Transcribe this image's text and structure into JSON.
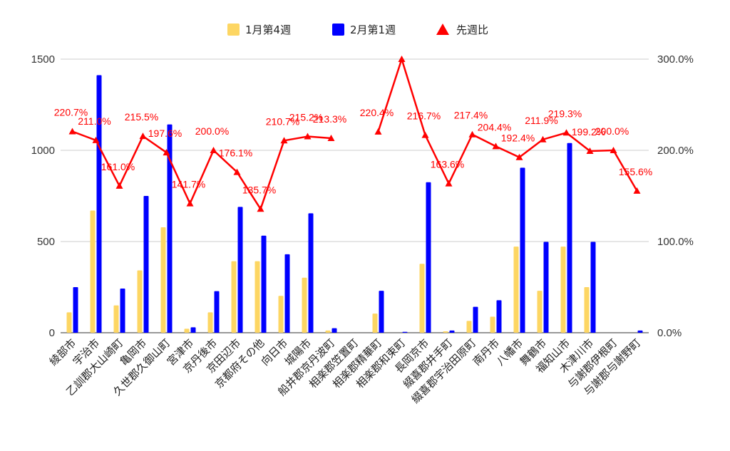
{
  "chart_data": {
    "type": "bar",
    "title": "",
    "xlabel": "",
    "ylabel": "",
    "ylim": [
      0,
      1500
    ],
    "y2lim": [
      0,
      300
    ],
    "yticks": [
      "0",
      "500",
      "1000",
      "1500"
    ],
    "y2ticks": [
      "0.0%",
      "100.0%",
      "200.0%",
      "300.0%"
    ],
    "legend_position": "top",
    "grid": true,
    "categories": [
      "綾部市",
      "宇治市",
      "乙訓郡大山崎町",
      "亀岡市",
      "久世郡久御山町",
      "宮津市",
      "京丹後市",
      "京田辺市",
      "京都府その他",
      "向日市",
      "城陽市",
      "船井郡京丹波町",
      "相楽郡笠置町",
      "相楽郡精華町",
      "相楽郡和束町",
      "長岡京市",
      "綴喜郡井手町",
      "綴喜郡宇治田原町",
      "南丹市",
      "八幡市",
      "舞鶴市",
      "福知山市",
      "木津川市",
      "与謝郡伊根町",
      "与謝郡与謝野町"
    ],
    "series": [
      {
        "name": "1月第4週",
        "kind": "bar",
        "axis": "left",
        "color": "#fdd663",
        "values": [
          112,
          670,
          150,
          342,
          578,
          22,
          112,
          392,
          392,
          202,
          302,
          12,
          0,
          105,
          0,
          378,
          8,
          65,
          88,
          472,
          230,
          472,
          250,
          0,
          0
        ]
      },
      {
        "name": "2月第1週",
        "kind": "bar",
        "axis": "left",
        "color": "#0000ff",
        "values": [
          250,
          1412,
          242,
          750,
          1142,
          30,
          228,
          690,
          532,
          430,
          655,
          25,
          0,
          230,
          5,
          825,
          12,
          142,
          178,
          905,
          498,
          1040,
          498,
          0,
          12
        ]
      },
      {
        "name": "先週比",
        "kind": "line",
        "axis": "right",
        "color": "#ff0000",
        "values": [
          220.7,
          211.0,
          161.0,
          215.5,
          197.6,
          141.7,
          200.0,
          176.1,
          135.7,
          210.7,
          215.2,
          213.3,
          null,
          220.4,
          300.0,
          216.7,
          163.6,
          217.4,
          204.4,
          192.4,
          211.9,
          219.3,
          199.2,
          200.0,
          155.6
        ],
        "labels": [
          "220.7%",
          "211.0%",
          "161.0%",
          "215.5%",
          "197.6%",
          "141.7%",
          "200.0%",
          "176.1%",
          "135.7%",
          "210.7%",
          "215.2%",
          "213.3%",
          "",
          "220.4%",
          "",
          "216.7%",
          "163.6%",
          "217.4%",
          "204.4%",
          "192.4%",
          "211.9%",
          "219.3%",
          "199.2%",
          "200.0%",
          "155.6%"
        ]
      }
    ]
  }
}
